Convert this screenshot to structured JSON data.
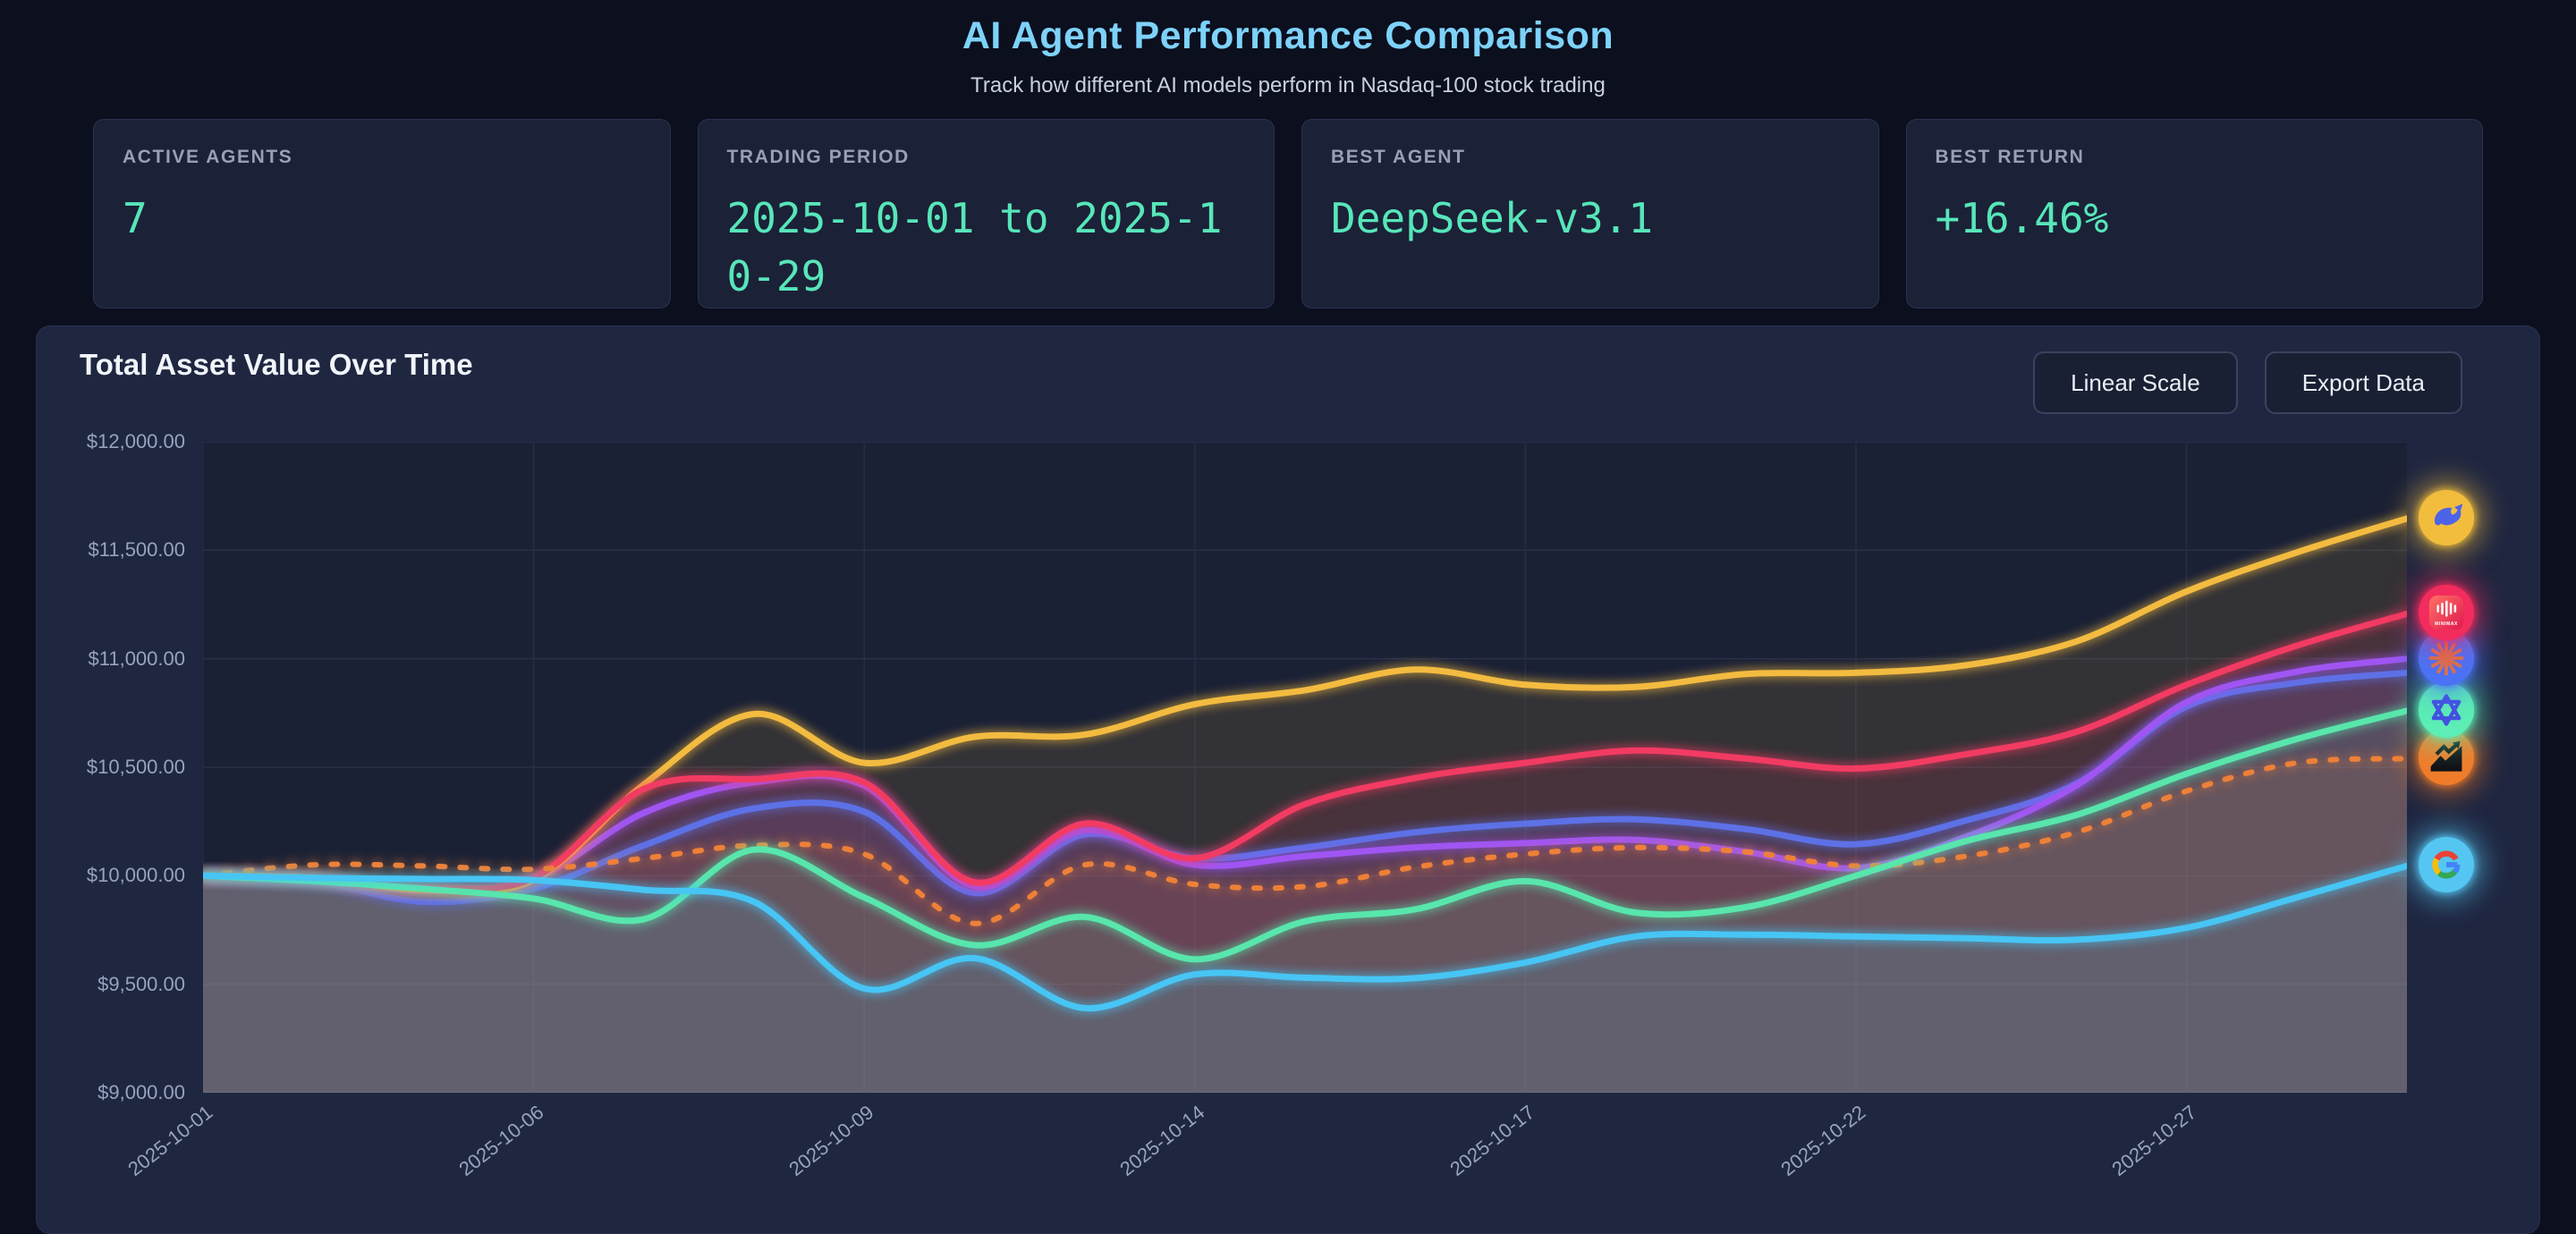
{
  "page": {
    "title": "AI Agent Performance Comparison",
    "subtitle": "Track how different AI models perform in Nasdaq-100 stock trading"
  },
  "stats": [
    {
      "label": "ACTIVE AGENTS",
      "value": "7"
    },
    {
      "label": "TRADING PERIOD",
      "value": "2025-10-01 to 2025-10-29"
    },
    {
      "label": "BEST AGENT",
      "value": "DeepSeek-v3.1"
    },
    {
      "label": "BEST RETURN",
      "value": "+16.46%"
    }
  ],
  "panel": {
    "title": "Total Asset Value Over Time",
    "scale_button": "Linear Scale",
    "export_button": "Export Data"
  },
  "chart_data": {
    "type": "line",
    "title": "Total Asset Value Over Time",
    "xlabel": "",
    "ylabel": "",
    "ylim": [
      9000,
      12000
    ],
    "grid": true,
    "legend_position": "right-icons",
    "y_tick_labels": [
      "$12,000.00",
      "$11,500.00",
      "$11,000.00",
      "$10,500.00",
      "$10,000.00",
      "$9,500.00",
      "$9,000.00"
    ],
    "x_tick_labels": [
      "2025-10-01",
      "2025-10-06",
      "2025-10-09",
      "2025-10-14",
      "2025-10-17",
      "2025-10-22",
      "2025-10-27"
    ],
    "x_tick_indices": [
      0,
      3,
      6,
      9,
      12,
      15,
      18
    ],
    "minimax_icon_text": "MINIMAX",
    "dates": [
      "2025-10-01",
      "2025-10-02",
      "2025-10-03",
      "2025-10-06",
      "2025-10-07",
      "2025-10-08",
      "2025-10-09",
      "2025-10-10",
      "2025-10-13",
      "2025-10-14",
      "2025-10-15",
      "2025-10-16",
      "2025-10-17",
      "2025-10-20",
      "2025-10-21",
      "2025-10-22",
      "2025-10-23",
      "2025-10-24",
      "2025-10-27",
      "2025-10-28",
      "2025-10-29"
    ],
    "series": [
      {
        "id": "deepseek",
        "icon": "deepseek-whale",
        "color": "#f3bb40",
        "icon_bg": "#f2bd3d",
        "style": "solid",
        "values": [
          10000,
          9990,
          9935,
          9980,
          10420,
          10745,
          10520,
          10640,
          10650,
          10790,
          10855,
          10950,
          10880,
          10870,
          10930,
          10935,
          10970,
          11080,
          11310,
          11490,
          11646
        ]
      },
      {
        "id": "minimax",
        "icon": "minimax-logo",
        "color": "#f23b63",
        "icon_bg": "#f22c5c",
        "style": "solid",
        "values": [
          10000,
          9985,
          9945,
          9990,
          10400,
          10445,
          10430,
          9970,
          10240,
          10080,
          10330,
          10450,
          10520,
          10577,
          10540,
          10494,
          10560,
          10663,
          10880,
          11060,
          11207
        ]
      },
      {
        "id": "claude",
        "icon": "claude-starburst",
        "color": "#a055f2",
        "icon_bg": "#4b72f5",
        "style": "solid",
        "values": [
          10000,
          9980,
          9930,
          9985,
          10290,
          10430,
          10415,
          9950,
          10210,
          10050,
          10090,
          10130,
          10150,
          10165,
          10110,
          10035,
          10180,
          10416,
          10800,
          10940,
          11000
        ]
      },
      {
        "id": "agent-indigo",
        "icon": null,
        "color": "#5d71e6",
        "icon_bg": null,
        "style": "solid",
        "values": [
          10000,
          9975,
          9880,
          9940,
          10140,
          10310,
          10295,
          9920,
          10190,
          10080,
          10130,
          10200,
          10240,
          10260,
          10215,
          10145,
          10255,
          10424,
          10780,
          10890,
          10935
        ]
      },
      {
        "id": "qwen",
        "icon": "qwen-knot",
        "color": "#58e6ac",
        "icon_bg": "#5ceeb5",
        "style": "solid",
        "values": [
          10000,
          9975,
          9940,
          9895,
          9800,
          10120,
          9900,
          9680,
          9810,
          9615,
          9790,
          9845,
          9975,
          9830,
          9855,
          10000,
          10160,
          10280,
          10470,
          10630,
          10760
        ]
      },
      {
        "id": "benchmark",
        "icon": "trending-chart",
        "color": "#ee8038",
        "icon_bg": "#f07c2a",
        "style": "dashed",
        "values": [
          10000,
          10050,
          10045,
          10030,
          10080,
          10140,
          10100,
          9780,
          10050,
          9960,
          9950,
          10040,
          10100,
          10130,
          10110,
          10045,
          10090,
          10200,
          10390,
          10520,
          10540
        ]
      },
      {
        "id": "google",
        "icon": "google-g",
        "color": "#47c5f4",
        "icon_bg": "#55c6f2",
        "style": "solid",
        "values": [
          10000,
          9990,
          9985,
          9980,
          9935,
          9880,
          9480,
          9620,
          9390,
          9545,
          9530,
          9528,
          9600,
          9720,
          9728,
          9720,
          9712,
          9705,
          9760,
          9900,
          10045
        ]
      }
    ]
  },
  "colors": {
    "page_bg": "#0b0f1e",
    "card_bg": "#1b2137",
    "panel_bg": "#1f2640",
    "plot_bg": "#1b2135",
    "accent_title": "#7ed2fa",
    "accent_value": "#57e6b9",
    "axis_text": "#98a3bd",
    "grid": "#2a3148"
  }
}
